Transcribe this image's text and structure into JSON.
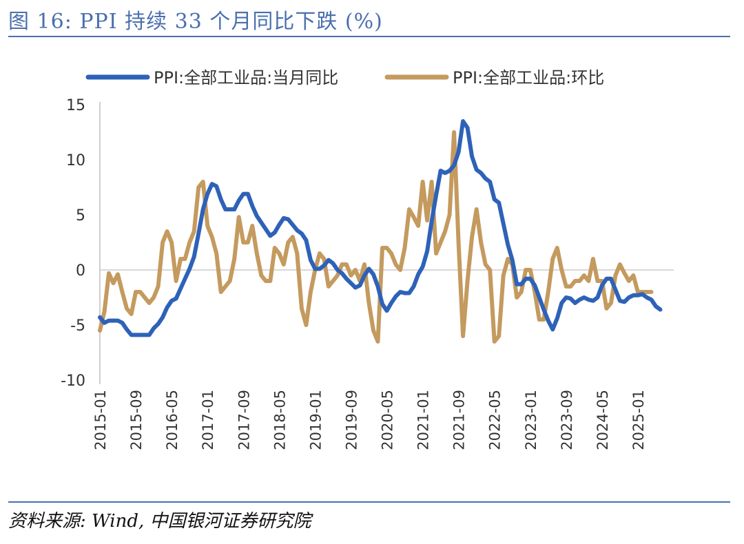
{
  "header": {
    "title": "图 16: PPI 持续 33 个月同比下跌 (%)"
  },
  "footer": {
    "source": "资料来源:  Wind,  中国银河证券研究院"
  },
  "colors": {
    "accent": "#4a6fae",
    "series_yoy": "#2e62b8",
    "series_mom": "#c49a5e",
    "zero_line": "#cccccc",
    "axis": "#bfbfbf"
  },
  "chart_data": {
    "type": "line",
    "title": "",
    "xlabel": "",
    "ylabel": "",
    "ylim": [
      -10,
      15
    ],
    "yticks": [
      15,
      10,
      5,
      0,
      -5,
      -10
    ],
    "grid": false,
    "legend_position": "top",
    "x_range": [
      "2015-01",
      "2025-09"
    ],
    "x_ticks": [
      "2015-01",
      "2015-09",
      "2016-05",
      "2017-01",
      "2017-09",
      "2018-05",
      "2019-01",
      "2019-09",
      "2020-05",
      "2021-01",
      "2021-09",
      "2022-05",
      "2023-01",
      "2023-09",
      "2024-05",
      "2025-01"
    ],
    "series": [
      {
        "name": "PPI:全部工业品:当月同比",
        "values": [
          -4.3,
          -4.8,
          -4.6,
          -4.6,
          -4.6,
          -4.8,
          -5.4,
          -5.9,
          -5.9,
          -5.9,
          -5.9,
          -5.9,
          -5.3,
          -4.9,
          -4.3,
          -3.4,
          -2.8,
          -2.6,
          -1.7,
          -0.8,
          0.1,
          1.2,
          3.3,
          5.5,
          6.9,
          7.8,
          7.6,
          6.4,
          5.5,
          5.5,
          5.5,
          6.3,
          6.9,
          6.9,
          5.8,
          4.9,
          4.3,
          3.7,
          3.1,
          3.4,
          4.1,
          4.7,
          4.6,
          4.1,
          3.6,
          3.3,
          2.7,
          0.9,
          0.1,
          0.1,
          0.4,
          0.9,
          0.6,
          0.0,
          -0.3,
          -0.8,
          -1.2,
          -1.6,
          -1.4,
          -0.5,
          0.1,
          -0.4,
          -1.5,
          -3.1,
          -3.7,
          -3.0,
          -2.4,
          -2.0,
          -2.1,
          -2.1,
          -1.5,
          -0.4,
          0.3,
          1.7,
          4.4,
          6.8,
          9.0,
          8.8,
          9.0,
          9.5,
          10.7,
          13.5,
          12.9,
          10.3,
          9.1,
          8.8,
          8.3,
          8.0,
          6.4,
          6.1,
          4.2,
          2.3,
          0.9,
          -1.3,
          -1.3,
          -0.8,
          -0.8,
          -1.4,
          -2.5,
          -3.6,
          -4.6,
          -5.4,
          -4.4,
          -3.0,
          -2.5,
          -2.6,
          -3.0,
          -2.7,
          -2.5,
          -2.7,
          -2.8,
          -2.5,
          -1.4,
          -0.8,
          -0.8,
          -1.8,
          -2.8,
          -2.9,
          -2.5,
          -2.3,
          -2.3,
          -2.2,
          -2.5,
          -2.7,
          -3.3,
          -3.6
        ]
      },
      {
        "name": "PPI:全部工业品:环比",
        "values": [
          -5.5,
          -3.8,
          -0.3,
          -1.2,
          -0.4,
          -2.0,
          -3.5,
          -4.0,
          -2.0,
          -2.0,
          -2.5,
          -3.0,
          -2.5,
          -1.5,
          2.5,
          3.5,
          2.5,
          -1.0,
          1.0,
          1.0,
          2.5,
          3.5,
          7.5,
          8.0,
          4.0,
          3.0,
          1.5,
          -2.0,
          -1.5,
          -1.0,
          1.0,
          4.8,
          2.5,
          2.5,
          4.0,
          1.5,
          -0.5,
          -1.0,
          -1.0,
          2.0,
          1.5,
          0.5,
          2.5,
          3.0,
          1.5,
          -3.5,
          -5.0,
          -2.0,
          0.0,
          1.5,
          1.0,
          -1.5,
          -1.0,
          -0.5,
          0.5,
          0.5,
          -0.5,
          0.0,
          -1.0,
          0.5,
          -3.0,
          -5.5,
          -6.5,
          2.0,
          2.0,
          1.5,
          0.5,
          0.0,
          2.0,
          5.5,
          4.8,
          4.0,
          8.0,
          4.5,
          8.0,
          1.5,
          2.5,
          3.5,
          5.0,
          12.5,
          2.5,
          -6.0,
          -1.0,
          3.0,
          5.5,
          2.5,
          0.5,
          0.0,
          -6.5,
          -6.0,
          -0.5,
          1.0,
          0.5,
          -2.5,
          -2.0,
          0.0,
          0.0,
          -2.0,
          -4.5,
          -4.5,
          -2.0,
          1.0,
          2.0,
          0.0,
          -1.5,
          -1.5,
          -1.0,
          -1.0,
          -0.5,
          -1.0,
          1.0,
          -1.0,
          -1.0,
          -3.5,
          -3.0,
          -0.5,
          0.5,
          -0.3,
          -1.0,
          -0.5,
          -2.0,
          -2.0,
          -2.0,
          -2.0
        ]
      }
    ]
  }
}
